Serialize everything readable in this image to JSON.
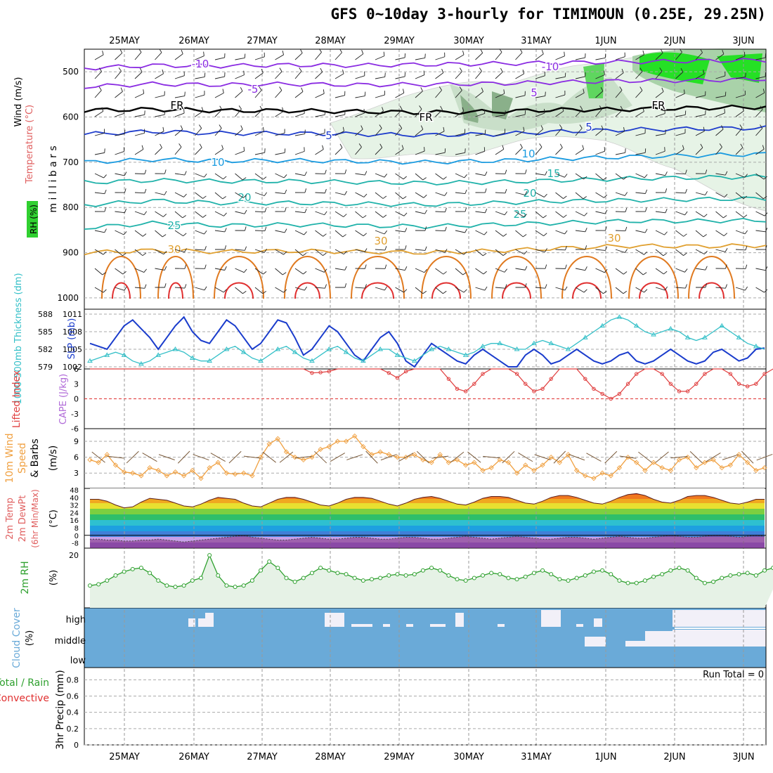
{
  "title": "GFS 0~10day 3-hourly for TIMIMOUN (0.25E, 29.25N)",
  "colors": {
    "purple": "#8a2be2",
    "black": "#000000",
    "blue": "#1e3ccc",
    "lightblue": "#1a9be0",
    "teal": "#20b2aa",
    "orange": "#e0a030",
    "darkorange": "#e07a20",
    "red": "#e03030",
    "cyan": "#35c0c8",
    "slp": "#1a3ccc",
    "lifted": "#e04040",
    "wind": "#f0a040",
    "rh": "#2ea02e",
    "cloud": "#6aaad8",
    "cloud_light": "#f2f0f8"
  },
  "chart_data": [
    {
      "type": "line",
      "panel": "upper-air time-height",
      "title": "Temperature (°C) / Wind (m/s) / RH (%)",
      "ylabel": "millibars",
      "legend_labels": [
        "Wind (m/s)",
        "Temperature (°C)",
        "RH (%)"
      ],
      "x_labels": [
        "25MAY",
        "26MAY",
        "27MAY",
        "28MAY",
        "29MAY",
        "30MAY",
        "31MAY",
        "1JUN",
        "2JUN",
        "3JUN"
      ],
      "y_ticks": [
        500,
        600,
        700,
        800,
        900,
        1000
      ],
      "ylim": [
        450,
        1025
      ],
      "isotherms": [
        {
          "label": "-10",
          "level": [
            492,
            486,
            487,
            485,
            486,
            484,
            482,
            480,
            478,
            476,
            474
          ],
          "color": "purple"
        },
        {
          "label": "-5",
          "level": [
            533,
            527,
            529,
            527,
            529,
            528,
            526,
            523,
            520,
            519,
            516
          ],
          "color": "purple"
        },
        {
          "label": "FR",
          "level": [
            585,
            583,
            586,
            586,
            588,
            590,
            588,
            584,
            583,
            580,
            578
          ],
          "color": "black"
        },
        {
          "label": "5",
          "level": [
            638,
            632,
            636,
            636,
            638,
            640,
            638,
            632,
            628,
            626,
            624
          ],
          "color": "blue"
        },
        {
          "label": "10",
          "level": [
            700,
            694,
            697,
            696,
            698,
            700,
            697,
            692,
            688,
            685,
            682
          ],
          "color": "lightblue"
        },
        {
          "label": "15",
          "level": [
            745,
            740,
            742,
            742,
            744,
            746,
            744,
            740,
            736,
            734,
            732
          ],
          "color": "teal"
        },
        {
          "label": "20",
          "level": [
            795,
            785,
            790,
            790,
            792,
            794,
            790,
            786,
            784,
            782,
            780
          ],
          "color": "teal"
        },
        {
          "label": "25",
          "level": [
            845,
            835,
            840,
            838,
            840,
            842,
            838,
            834,
            830,
            830,
            828
          ],
          "color": "teal"
        },
        {
          "label": "30",
          "level": [
            900,
            895,
            898,
            896,
            898,
            900,
            896,
            890,
            885,
            886,
            884
          ],
          "color": "orange"
        }
      ],
      "contour_labels": [
        "-10",
        "-5",
        "FR",
        "5",
        "10",
        "15",
        "20",
        "25",
        "30",
        "-10",
        "5",
        "FR",
        "10",
        "30",
        "-5",
        "20",
        "25",
        "30",
        "FR",
        "5",
        "10",
        "15",
        "30"
      ]
    },
    {
      "type": "line",
      "panel": "thickness-slp",
      "ylabel_left": "1000-500mb Thickness (dm)",
      "ylabel_right": "SLP (mb)",
      "y_ticks_left": [
        579,
        582,
        585,
        588
      ],
      "y_ticks_right": [
        1002,
        1005,
        1008,
        1011
      ],
      "series": [
        {
          "name": "SLP",
          "values": [
            1006,
            1005.5,
            1005,
            1007,
            1009,
            1010,
            1008.5,
            1007,
            1005,
            1007,
            1009,
            1010.5,
            1008,
            1006.5,
            1006,
            1008,
            1010,
            1009,
            1007,
            1005,
            1006,
            1008,
            1010,
            1009.5,
            1007,
            1004,
            1005,
            1007,
            1009,
            1008,
            1006,
            1004,
            1003,
            1005,
            1007,
            1008,
            1006,
            1003,
            1002,
            1004,
            1006,
            1005,
            1004,
            1003,
            1002.5,
            1004,
            1005,
            1004,
            1003,
            1002,
            1002,
            1004,
            1005,
            1004,
            1002.5,
            1003,
            1004,
            1005,
            1004,
            1003,
            1002.5,
            1003,
            1004,
            1004.5,
            1003,
            1002.5,
            1003,
            1004,
            1005,
            1004,
            1003,
            1002.5,
            1003,
            1004.5,
            1005,
            1004,
            1003,
            1003.5,
            1005,
            1005.2
          ]
        },
        {
          "name": "Thickness",
          "values": [
            580,
            580.5,
            581,
            581.5,
            581,
            580,
            579.5,
            580,
            581,
            581.5,
            582,
            581.5,
            580.5,
            580,
            580,
            581,
            582,
            582.5,
            581.5,
            580.5,
            580,
            581,
            582,
            582.5,
            581.5,
            580.5,
            580,
            581,
            582,
            582.5,
            581.5,
            580.5,
            580,
            581,
            582,
            582,
            581,
            580.5,
            580,
            581,
            582,
            582.5,
            582,
            581.5,
            581,
            581.5,
            582.5,
            583,
            583,
            582.5,
            582,
            582,
            583,
            583.5,
            583,
            582.5,
            582,
            583,
            584,
            585,
            586,
            587,
            587.5,
            587,
            586,
            585,
            584.5,
            585,
            585.5,
            585,
            584,
            583.5,
            584,
            585,
            586,
            585,
            584,
            583,
            582.5,
            582
          ]
        }
      ]
    },
    {
      "type": "line",
      "panel": "lifted-cape",
      "ylabel_left": "Lifted Index",
      "ylabel_right": "CAPE (J/kg)",
      "y_ticks": [
        6,
        3,
        0,
        -3,
        -6
      ],
      "series": [
        {
          "name": "Lifted Index",
          "values": [
            6,
            6,
            6,
            6,
            6,
            6,
            6,
            6,
            6,
            6,
            6,
            6,
            6,
            6,
            6,
            6,
            6,
            6,
            6,
            6,
            6,
            6,
            6,
            6,
            6,
            6,
            5.2,
            5.3,
            5.5,
            6,
            6,
            6,
            6,
            6,
            6,
            5.2,
            4.2,
            5.5,
            6,
            6,
            6,
            6,
            4,
            2,
            1.5,
            3,
            5,
            6,
            6,
            6,
            5,
            3,
            1.5,
            2,
            4,
            6,
            6,
            6,
            4,
            2,
            1,
            0,
            1,
            3,
            5,
            6,
            6,
            5,
            3,
            1.5,
            1.5,
            3,
            5,
            6,
            6,
            5,
            3,
            2.5,
            3,
            5,
            6
          ]
        }
      ]
    },
    {
      "type": "line",
      "panel": "10m wind",
      "ylabel": "10m Wind Speed & Barbs (m/s)",
      "y_ticks": [
        3,
        6,
        9
      ],
      "series": [
        {
          "name": "Wind Speed",
          "values": [
            5.5,
            5,
            6.5,
            4.5,
            3.2,
            3,
            2.5,
            4,
            3.5,
            2.5,
            3.2,
            2.5,
            3.5,
            2,
            4,
            5,
            3,
            2.8,
            3,
            2.5,
            6,
            8.5,
            9.5,
            7,
            6,
            5.5,
            6,
            7.5,
            8,
            9,
            9,
            10,
            8,
            6.5,
            7,
            6.5,
            6,
            6,
            6.5,
            5.5,
            5,
            6.5,
            5,
            5.5,
            4.5,
            5,
            3.5,
            4,
            5.5,
            5,
            3,
            4.5,
            3.5,
            4.5,
            6,
            5,
            6.5,
            3.5,
            2.5,
            2,
            3,
            2.5,
            4,
            6,
            5,
            3.5,
            5,
            4,
            3.5,
            5.5,
            6,
            4,
            5,
            5.5,
            4,
            4.5,
            6.5,
            5,
            3.5,
            4
          ]
        }
      ]
    },
    {
      "type": "area",
      "panel": "2m temp",
      "ylabel": "2m Temp / 2m DewPt (6hr Min/Max) (°C)",
      "y_ticks": [
        -8,
        0,
        8,
        16,
        24,
        32,
        40,
        48
      ],
      "series": [
        {
          "name": "2m Temp",
          "values": [
            38,
            38,
            36,
            32,
            29,
            30,
            35,
            39,
            38,
            37,
            34,
            31,
            30,
            33,
            37,
            40,
            39,
            38,
            34,
            31,
            30,
            34,
            38,
            40,
            40,
            38,
            35,
            32,
            31,
            34,
            38,
            40,
            40,
            39,
            36,
            33,
            31,
            34,
            38,
            40,
            41,
            39,
            36,
            33,
            32,
            35,
            39,
            41,
            41,
            40,
            37,
            34,
            33,
            36,
            40,
            42,
            42,
            40,
            37,
            34,
            33,
            36,
            40,
            43,
            44,
            42,
            38,
            35,
            34,
            37,
            41,
            42,
            42,
            40,
            37,
            34,
            33,
            35,
            38,
            38
          ]
        },
        {
          "name": "2m DewPt",
          "values": [
            -4,
            -4,
            -5,
            -5,
            -6,
            -6,
            -5,
            -5,
            -4,
            -5,
            -6,
            -7,
            -6,
            -5,
            -4,
            -3,
            -2,
            -1,
            0,
            -2,
            -3,
            -4,
            -5,
            -5,
            -4,
            -3,
            -2,
            -3,
            -4,
            -4,
            -3,
            -2,
            -2,
            -3,
            -4,
            -4,
            -3,
            -2,
            -2,
            -3,
            -4,
            -4,
            -3,
            -2,
            -1,
            -2,
            -3,
            -4,
            -3,
            -2,
            -1,
            -2,
            -3,
            -4,
            -4,
            -3,
            -2,
            -2,
            -3,
            -4,
            -3,
            -2,
            -1,
            -2,
            -3,
            -3,
            -2,
            -1,
            0,
            -1,
            -2,
            -2,
            -1,
            0,
            0,
            -1,
            -2,
            -1,
            0,
            -1
          ]
        }
      ]
    },
    {
      "type": "area",
      "panel": "2m rh",
      "ylabel": "2m RH (%)",
      "y_ticks": [
        20
      ],
      "series": [
        {
          "name": "2m RH",
          "values": [
            8,
            8.5,
            10,
            12,
            13.5,
            14.5,
            15,
            13,
            10,
            8,
            7.5,
            8,
            10,
            11,
            20,
            12,
            8,
            7.5,
            8,
            10,
            14,
            17.5,
            15,
            11,
            9.5,
            11,
            13,
            15,
            14,
            13,
            12.5,
            11,
            10,
            10.5,
            11,
            12,
            12.5,
            12,
            12.5,
            14,
            15,
            14,
            12,
            10.5,
            10,
            11,
            12,
            13,
            12.5,
            11,
            10.5,
            11.5,
            13,
            14,
            12.5,
            10.5,
            10,
            11,
            12,
            13.5,
            14,
            12.5,
            10,
            9,
            9,
            10,
            11.5,
            12.5,
            14,
            15,
            14,
            11,
            9,
            9.5,
            11,
            12,
            12.5,
            13,
            12,
            14,
            15,
            14
          ]
        }
      ]
    },
    {
      "type": "heatmap",
      "panel": "cloud cover",
      "ylabel": "Cloud Cover (%)",
      "y_categories": [
        "high",
        "middle",
        "low"
      ]
    },
    {
      "type": "bar",
      "panel": "3hr precip",
      "ylabel_left": "Total / Rain",
      "ylabel_left2": "Convective",
      "ylabel": "3hr Precip (mm)",
      "y_ticks": [
        0,
        0.2,
        0.4,
        0.6,
        0.8
      ],
      "ylim": [
        0,
        0.95
      ],
      "run_total": "Run Total = 0",
      "values": []
    }
  ],
  "x_labels_bottom": [
    "25MAY",
    "26MAY",
    "27MAY",
    "28MAY",
    "29MAY",
    "30MAY",
    "31MAY",
    "1JUN",
    "2JUN",
    "3JUN"
  ]
}
